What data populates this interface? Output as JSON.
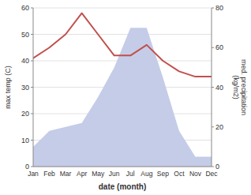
{
  "chart_data": {
    "type": "line",
    "categories": [
      "Jan",
      "Feb",
      "Mar",
      "Apr",
      "May",
      "Jun",
      "Jul",
      "Aug",
      "Sep",
      "Oct",
      "Nov",
      "Dec"
    ],
    "xlabel": "date (month)",
    "ylabel": "max temp (C)",
    "y2label": "med. precipitation\n(kg/m2)",
    "ylim": [
      0,
      60
    ],
    "yticks": [
      0,
      10,
      20,
      30,
      40,
      50,
      60
    ],
    "y2lim": [
      0,
      80
    ],
    "y2ticks": [
      0,
      20,
      40,
      60,
      80
    ],
    "grid": true,
    "series": [
      {
        "type": "area",
        "axis": "y2",
        "color": "#c5cce8",
        "values": [
          10,
          18,
          20,
          22,
          35,
          50,
          70,
          70,
          45,
          18,
          5,
          5
        ]
      },
      {
        "type": "line",
        "color": "#c0504d",
        "values": [
          41,
          45,
          50,
          58,
          50,
          42,
          42,
          46,
          40,
          36,
          34,
          34
        ]
      }
    ]
  }
}
